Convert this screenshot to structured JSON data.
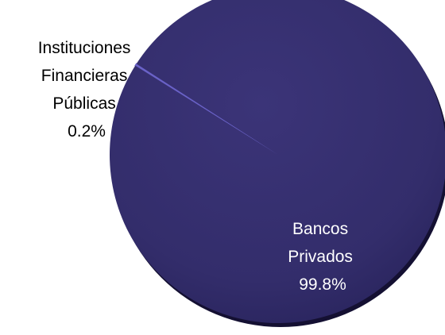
{
  "chart_data": {
    "type": "pie",
    "title": "",
    "slices": [
      {
        "label_lines": [
          "Instituciones",
          "Financieras",
          "Públicas"
        ],
        "value_label": "0.2%",
        "value": 0.2,
        "color": "#6a62c8"
      },
      {
        "label_lines": [
          "Bancos",
          "Privados"
        ],
        "value_label": "99.8%",
        "value": 99.8,
        "color": "#342e6d"
      }
    ],
    "style": "3d-shaded",
    "legend": "none"
  }
}
